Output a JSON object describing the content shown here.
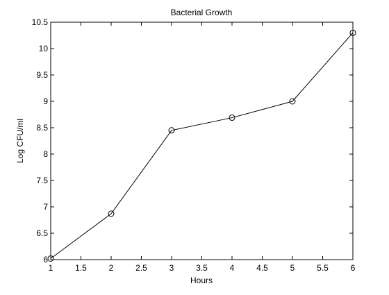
{
  "chart_data": {
    "type": "line",
    "title": "Bacterial Growth",
    "xlabel": "Hours",
    "ylabel": "Log CFU/ml",
    "xlim": [
      1,
      6
    ],
    "ylim": [
      6,
      10.5
    ],
    "xticks": [
      "1",
      "1.5",
      "2",
      "2.5",
      "3",
      "3.5",
      "4",
      "4.5",
      "5",
      "5.5",
      "6"
    ],
    "yticks": [
      "6",
      "6.5",
      "7",
      "7.5",
      "8",
      "8.5",
      "9",
      "9.5",
      "10",
      "10.5"
    ],
    "grid": false,
    "marker": "circle",
    "line_color": "#000000",
    "series": [
      {
        "x": [
          1,
          2,
          3,
          4,
          5,
          6
        ],
        "values": [
          6.02,
          6.87,
          8.45,
          8.69,
          9.0,
          10.3
        ]
      }
    ]
  }
}
